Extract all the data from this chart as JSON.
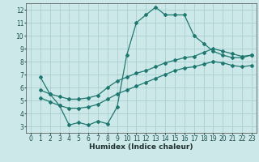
{
  "xlabel": "Humidex (Indice chaleur)",
  "bg_color": "#cce8e8",
  "grid_color": "#aacfcf",
  "line_color": "#1e7870",
  "xlim": [
    -0.5,
    23.5
  ],
  "ylim": [
    2.5,
    12.5
  ],
  "xticks": [
    0,
    1,
    2,
    3,
    4,
    5,
    6,
    7,
    8,
    9,
    10,
    11,
    12,
    13,
    14,
    15,
    16,
    17,
    18,
    19,
    20,
    21,
    22,
    23
  ],
  "yticks": [
    3,
    4,
    5,
    6,
    7,
    8,
    9,
    10,
    11,
    12
  ],
  "curve1_x": [
    1,
    2,
    3,
    4,
    5,
    6,
    7,
    8,
    9,
    10,
    11,
    12,
    13,
    14,
    15,
    16,
    17,
    18,
    19,
    20,
    21,
    22,
    23
  ],
  "curve1_y": [
    6.8,
    5.5,
    4.6,
    3.1,
    3.3,
    3.1,
    3.4,
    3.2,
    4.5,
    8.5,
    11.0,
    11.6,
    12.2,
    11.6,
    11.6,
    11.6,
    10.0,
    9.4,
    8.8,
    8.5,
    8.3,
    8.3,
    8.5
  ],
  "curve2_x": [
    1,
    2,
    3,
    4,
    5,
    6,
    7,
    8,
    9,
    10,
    11,
    12,
    13,
    14,
    15,
    16,
    17,
    18,
    19,
    20,
    21,
    22,
    23
  ],
  "curve2_y": [
    5.8,
    5.5,
    5.3,
    5.1,
    5.1,
    5.2,
    5.4,
    6.0,
    6.5,
    6.8,
    7.1,
    7.3,
    7.6,
    7.9,
    8.1,
    8.3,
    8.4,
    8.7,
    9.0,
    8.8,
    8.6,
    8.4,
    8.5
  ],
  "curve3_x": [
    1,
    2,
    3,
    4,
    5,
    6,
    7,
    8,
    9,
    10,
    11,
    12,
    13,
    14,
    15,
    16,
    17,
    18,
    19,
    20,
    21,
    22,
    23
  ],
  "curve3_y": [
    5.2,
    4.9,
    4.6,
    4.4,
    4.4,
    4.5,
    4.7,
    5.1,
    5.5,
    5.8,
    6.1,
    6.4,
    6.7,
    7.0,
    7.3,
    7.5,
    7.6,
    7.8,
    8.0,
    7.9,
    7.7,
    7.6,
    7.7
  ],
  "marker": "D",
  "marker_size": 2,
  "linewidth": 0.9,
  "tick_fontsize": 5.5,
  "xlabel_fontsize": 6.5
}
